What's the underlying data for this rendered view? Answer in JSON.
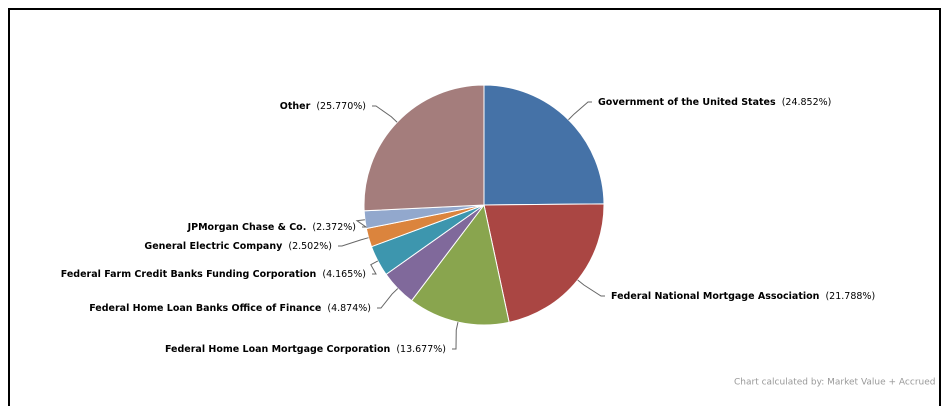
{
  "chart_data": {
    "type": "pie",
    "categories": [
      "Government of the United States",
      "Federal National Mortgage Association",
      "Federal Home Loan Mortgage Corporation",
      "Federal Home Loan Banks Office of Finance",
      "Federal Farm Credit Banks Funding Corporation",
      "General Electric Company",
      "JPMorgan Chase & Co.",
      "Other"
    ],
    "values": [
      24.852,
      21.788,
      13.677,
      4.874,
      4.165,
      2.502,
      2.372,
      25.77
    ],
    "value_labels": [
      "(24.852%)",
      "(21.788%)",
      "(13.677%)",
      "(4.874%)",
      "(4.165%)",
      "(2.502%)",
      "(2.372%)",
      "(25.770%)"
    ],
    "colors": [
      "#4572a7",
      "#aa4643",
      "#89a54e",
      "#80699b",
      "#3d96ae",
      "#db843d",
      "#92a8cd",
      "#a47d7c"
    ],
    "annotation": "Chart calculated by: Market Value + Accrued"
  }
}
